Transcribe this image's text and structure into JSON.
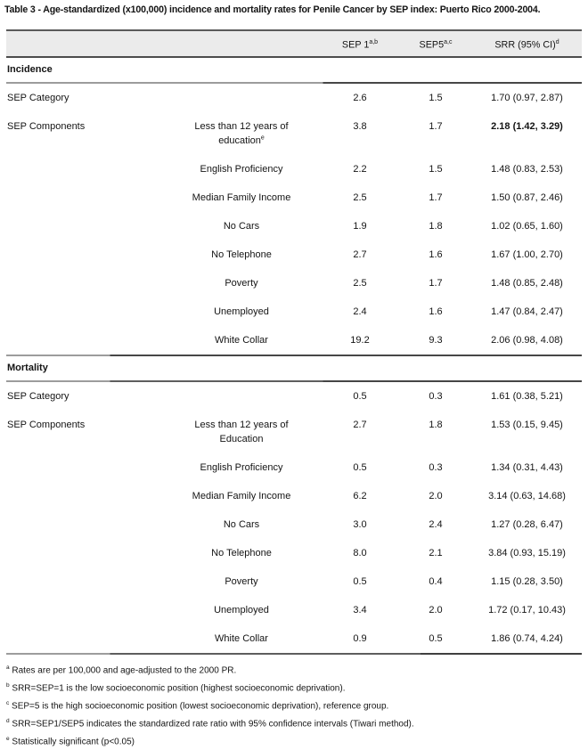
{
  "title": "Table 3 - Age-standardized (x100,000) incidence and mortality rates for Penile Cancer by SEP index: Puerto Rico 2000-2004.",
  "columns": {
    "sep1": {
      "label": "SEP 1",
      "sup": "a,b"
    },
    "sep5": {
      "label": "SEP5",
      "sup": "a,c"
    },
    "srr": {
      "label": "SRR (95% CI)",
      "sup": "d"
    }
  },
  "sections": [
    {
      "header": "Incidence",
      "rows": [
        {
          "group": "SEP Category",
          "component": "",
          "component_sup": "",
          "sep1": "2.6",
          "sep5": "1.5",
          "srr": "1.70 (0.97, 2.87)",
          "bold_srr": false
        },
        {
          "group": "SEP Components",
          "component": "Less than 12 years of education",
          "component_sup": "e",
          "sep1": "3.8",
          "sep5": "1.7",
          "srr": "2.18 (1.42, 3.29)",
          "bold_srr": true
        },
        {
          "group": "",
          "component": "English Proficiency",
          "component_sup": "",
          "sep1": "2.2",
          "sep5": "1.5",
          "srr": "1.48 (0.83, 2.53)",
          "bold_srr": false
        },
        {
          "group": "",
          "component": "Median Family Income",
          "component_sup": "",
          "sep1": "2.5",
          "sep5": "1.7",
          "srr": "1.50 (0.87, 2.46)",
          "bold_srr": false
        },
        {
          "group": "",
          "component": "No Cars",
          "component_sup": "",
          "sep1": "1.9",
          "sep5": "1.8",
          "srr": "1.02 (0.65, 1.60)",
          "bold_srr": false
        },
        {
          "group": "",
          "component": "No Telephone",
          "component_sup": "",
          "sep1": "2.7",
          "sep5": "1.6",
          "srr": "1.67 (1.00, 2.70)",
          "bold_srr": false
        },
        {
          "group": "",
          "component": "Poverty",
          "component_sup": "",
          "sep1": "2.5",
          "sep5": "1.7",
          "srr": "1.48 (0.85, 2.48)",
          "bold_srr": false
        },
        {
          "group": "",
          "component": "Unemployed",
          "component_sup": "",
          "sep1": "2.4",
          "sep5": "1.6",
          "srr": "1.47 (0.84, 2.47)",
          "bold_srr": false
        },
        {
          "group": "",
          "component": "White Collar",
          "component_sup": "",
          "sep1": "19.2",
          "sep5": "9.3",
          "srr": "2.06 (0.98, 4.08)",
          "bold_srr": false
        }
      ]
    },
    {
      "header": "Mortality",
      "rows": [
        {
          "group": "SEP Category",
          "component": "",
          "component_sup": "",
          "sep1": "0.5",
          "sep5": "0.3",
          "srr": "1.61 (0.38, 5.21)",
          "bold_srr": false
        },
        {
          "group": "SEP Components",
          "component": "Less than 12 years of Education",
          "component_sup": "",
          "sep1": "2.7",
          "sep5": "1.8",
          "srr": "1.53 (0.15, 9.45)",
          "bold_srr": false
        },
        {
          "group": "",
          "component": "English Proficiency",
          "component_sup": "",
          "sep1": "0.5",
          "sep5": "0.3",
          "srr": "1.34 (0.31, 4.43)",
          "bold_srr": false
        },
        {
          "group": "",
          "component": "Median Family Income",
          "component_sup": "",
          "sep1": "6.2",
          "sep5": "2.0",
          "srr": "3.14 (0.63, 14.68)",
          "bold_srr": false
        },
        {
          "group": "",
          "component": "No Cars",
          "component_sup": "",
          "sep1": "3.0",
          "sep5": "2.4",
          "srr": "1.27 (0.28, 6.47)",
          "bold_srr": false
        },
        {
          "group": "",
          "component": "No Telephone",
          "component_sup": "",
          "sep1": "8.0",
          "sep5": "2.1",
          "srr": "3.84 (0.93, 15.19)",
          "bold_srr": false
        },
        {
          "group": "",
          "component": "Poverty",
          "component_sup": "",
          "sep1": "0.5",
          "sep5": "0.4",
          "srr": "1.15 (0.28, 3.50)",
          "bold_srr": false
        },
        {
          "group": "",
          "component": "Unemployed",
          "component_sup": "",
          "sep1": "3.4",
          "sep5": "2.0",
          "srr": "1.72 (0.17, 10.43)",
          "bold_srr": false
        },
        {
          "group": "",
          "component": "White Collar",
          "component_sup": "",
          "sep1": "0.9",
          "sep5": "0.5",
          "srr": "1.86 (0.74, 4.24)",
          "bold_srr": false
        }
      ]
    }
  ],
  "footnotes": [
    {
      "sup": "a",
      "text": "Rates are per 100,000 and age-adjusted to the 2000 PR."
    },
    {
      "sup": "b",
      "text": "SRR=SEP=1 is the low socioeconomic position (highest socioeconomic deprivation)."
    },
    {
      "sup": "c",
      "text": "SEP=5 is the high socioeconomic position (lowest socioeconomic deprivation), reference group."
    },
    {
      "sup": "d",
      "text": "SRR=SEP1/SEP5 indicates the standardized rate ratio with 95% confidence intervals (Tiwari method)."
    },
    {
      "sup": "e",
      "text": "Statistically significant (p<0.05)"
    }
  ],
  "colors": {
    "header_bg": "#ebebeb",
    "rule_dark": "#4f4f4f",
    "rule_light": "#9c9c9c",
    "text": "#141414"
  }
}
